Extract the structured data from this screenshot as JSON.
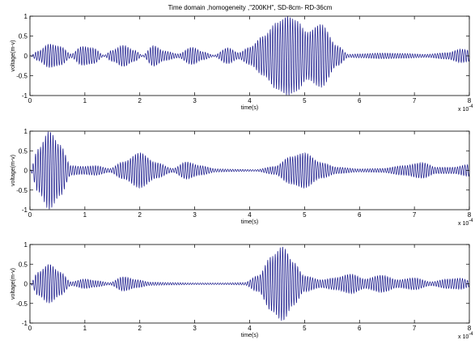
{
  "title": "Time domain ,homogeneity ,\"200KH\", SD-8cm- RD-36cm",
  "colors": {
    "signal": "#1a1a8c",
    "axes": "#000000",
    "background": "#ffffff"
  },
  "chart_data": [
    {
      "type": "line",
      "xlabel": "time(s)",
      "ylabel": "voltage(m-v)",
      "x_multiplier": "x 10^-4",
      "x_exponent_base": "x 10",
      "x_exponent": "-4",
      "xlim": [
        0,
        8
      ],
      "ylim": [
        -1,
        1
      ],
      "xticks": [
        0,
        1,
        2,
        3,
        4,
        5,
        6,
        7,
        8
      ],
      "yticks": [
        -1,
        -0.5,
        0,
        0.5,
        1
      ],
      "grid": false,
      "series": [
        {
          "description": "envelope peak amplitudes (x in units of 1e-4 s)",
          "envelope": [
            [
              0,
              0
            ],
            [
              0.15,
              0.12
            ],
            [
              0.35,
              0.3
            ],
            [
              0.55,
              0.24
            ],
            [
              0.75,
              0.05
            ],
            [
              0.95,
              0.24
            ],
            [
              1.15,
              0.2
            ],
            [
              1.35,
              0.02
            ],
            [
              1.5,
              0.14
            ],
            [
              1.7,
              0.27
            ],
            [
              1.9,
              0.14
            ],
            [
              2.05,
              0.02
            ],
            [
              2.25,
              0.26
            ],
            [
              2.45,
              0.12
            ],
            [
              2.7,
              0.05
            ],
            [
              2.95,
              0.22
            ],
            [
              3.15,
              0.1
            ],
            [
              3.35,
              0.02
            ],
            [
              3.6,
              0.2
            ],
            [
              3.8,
              0.08
            ],
            [
              4.0,
              0.22
            ],
            [
              4.25,
              0.5
            ],
            [
              4.5,
              0.85
            ],
            [
              4.7,
              1.0
            ],
            [
              4.85,
              0.9
            ],
            [
              5.05,
              0.6
            ],
            [
              5.3,
              0.8
            ],
            [
              5.6,
              0.25
            ],
            [
              5.8,
              0.04
            ],
            [
              6.0,
              0.05
            ],
            [
              6.4,
              0.07
            ],
            [
              6.8,
              0.06
            ],
            [
              7.2,
              0.04
            ],
            [
              7.6,
              0.08
            ],
            [
              7.85,
              0.17
            ],
            [
              8.0,
              0.14
            ]
          ],
          "carrier_cycles_per_unit": 22
        }
      ]
    },
    {
      "type": "line",
      "xlabel": "time(s)",
      "ylabel": "voltage(m-v)",
      "x_multiplier": "x 10^-4",
      "x_exponent_base": "x 10",
      "x_exponent": "-4",
      "xlim": [
        0,
        8
      ],
      "ylim": [
        -1,
        1
      ],
      "xticks": [
        0,
        1,
        2,
        3,
        4,
        5,
        6,
        7,
        8
      ],
      "yticks": [
        -1,
        -0.5,
        0,
        0.5,
        1
      ],
      "grid": false,
      "series": [
        {
          "description": "envelope peak amplitudes (x in units of 1e-4 s)",
          "envelope": [
            [
              0,
              0
            ],
            [
              0.15,
              0.55
            ],
            [
              0.35,
              1.0
            ],
            [
              0.55,
              0.65
            ],
            [
              0.75,
              0.12
            ],
            [
              0.95,
              0.1
            ],
            [
              1.2,
              0.12
            ],
            [
              1.45,
              0.05
            ],
            [
              1.7,
              0.22
            ],
            [
              2.0,
              0.45
            ],
            [
              2.3,
              0.2
            ],
            [
              2.6,
              0.05
            ],
            [
              2.85,
              0.22
            ],
            [
              3.1,
              0.12
            ],
            [
              3.4,
              0.04
            ],
            [
              3.7,
              0.03
            ],
            [
              4.1,
              0.02
            ],
            [
              4.45,
              0.1
            ],
            [
              4.75,
              0.35
            ],
            [
              5.0,
              0.45
            ],
            [
              5.3,
              0.2
            ],
            [
              5.6,
              0.08
            ],
            [
              6.0,
              0.04
            ],
            [
              6.4,
              0.05
            ],
            [
              6.8,
              0.12
            ],
            [
              7.15,
              0.2
            ],
            [
              7.4,
              0.08
            ],
            [
              7.7,
              0.08
            ],
            [
              8.0,
              0.15
            ]
          ],
          "carrier_cycles_per_unit": 22
        }
      ]
    },
    {
      "type": "line",
      "xlabel": "time(s)",
      "ylabel": "voltage(m-v)",
      "x_multiplier": "x 10^-4",
      "x_exponent_base": "x 10",
      "x_exponent": "-4",
      "xlim": [
        0,
        8
      ],
      "ylim": [
        -1,
        1
      ],
      "xticks": [
        0,
        1,
        2,
        3,
        4,
        5,
        6,
        7,
        8
      ],
      "yticks": [
        -1,
        -0.5,
        0,
        0.5,
        1
      ],
      "grid": false,
      "series": [
        {
          "description": "envelope peak amplitudes (x in units of 1e-4 s)",
          "envelope": [
            [
              0,
              0
            ],
            [
              0.15,
              0.3
            ],
            [
              0.35,
              0.5
            ],
            [
              0.55,
              0.3
            ],
            [
              0.75,
              0.05
            ],
            [
              1.0,
              0.12
            ],
            [
              1.2,
              0.08
            ],
            [
              1.45,
              0.03
            ],
            [
              1.7,
              0.18
            ],
            [
              1.95,
              0.1
            ],
            [
              2.2,
              0.04
            ],
            [
              2.6,
              0.03
            ],
            [
              3.0,
              0.02
            ],
            [
              3.5,
              0.02
            ],
            [
              3.9,
              0.03
            ],
            [
              4.15,
              0.2
            ],
            [
              4.4,
              0.7
            ],
            [
              4.6,
              0.95
            ],
            [
              4.8,
              0.55
            ],
            [
              5.0,
              0.2
            ],
            [
              5.3,
              0.1
            ],
            [
              5.55,
              0.15
            ],
            [
              5.85,
              0.25
            ],
            [
              6.1,
              0.12
            ],
            [
              6.4,
              0.22
            ],
            [
              6.7,
              0.1
            ],
            [
              7.0,
              0.15
            ],
            [
              7.3,
              0.05
            ],
            [
              7.6,
              0.12
            ],
            [
              7.85,
              0.14
            ],
            [
              8.0,
              0.08
            ]
          ],
          "carrier_cycles_per_unit": 22
        }
      ]
    }
  ]
}
